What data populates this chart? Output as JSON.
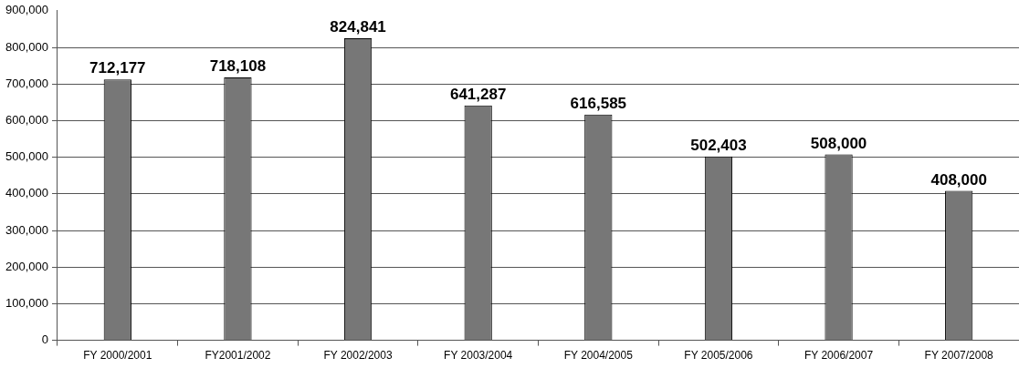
{
  "chart_data": {
    "type": "bar",
    "categories": [
      "FY 2000/2001",
      "FY2001/2002",
      "FY 2002/2003",
      "FY 2003/2004",
      "FY 2004/2005",
      "FY 2005/2006",
      "FY 2006/2007",
      "FY 2007/2008"
    ],
    "values": [
      712177,
      718108,
      824841,
      641287,
      616585,
      502403,
      508000,
      408000
    ],
    "value_labels": [
      "712,177",
      "718,108",
      "824,841",
      "641,287",
      "616,585",
      "502,403",
      "508,000",
      "408,000"
    ],
    "color": "#777777",
    "ylim": [
      0,
      900000
    ],
    "yticks": [
      0,
      {
        "value": 100000,
        "label": "100,000"
      },
      {
        "value": 200000,
        "label": "200,000"
      },
      {
        "value": 300000,
        "label": "300,000"
      },
      {
        "value": 400000,
        "label": "400,000"
      },
      {
        "value": 500000,
        "label": "500,000"
      },
      {
        "value": 600000,
        "label": "600,000"
      },
      {
        "value": 700000,
        "label": "700,000"
      },
      {
        "value": 800000,
        "label": "800,000"
      },
      {
        "value": 900000,
        "label": "900,000"
      }
    ],
    "grid": "y"
  }
}
